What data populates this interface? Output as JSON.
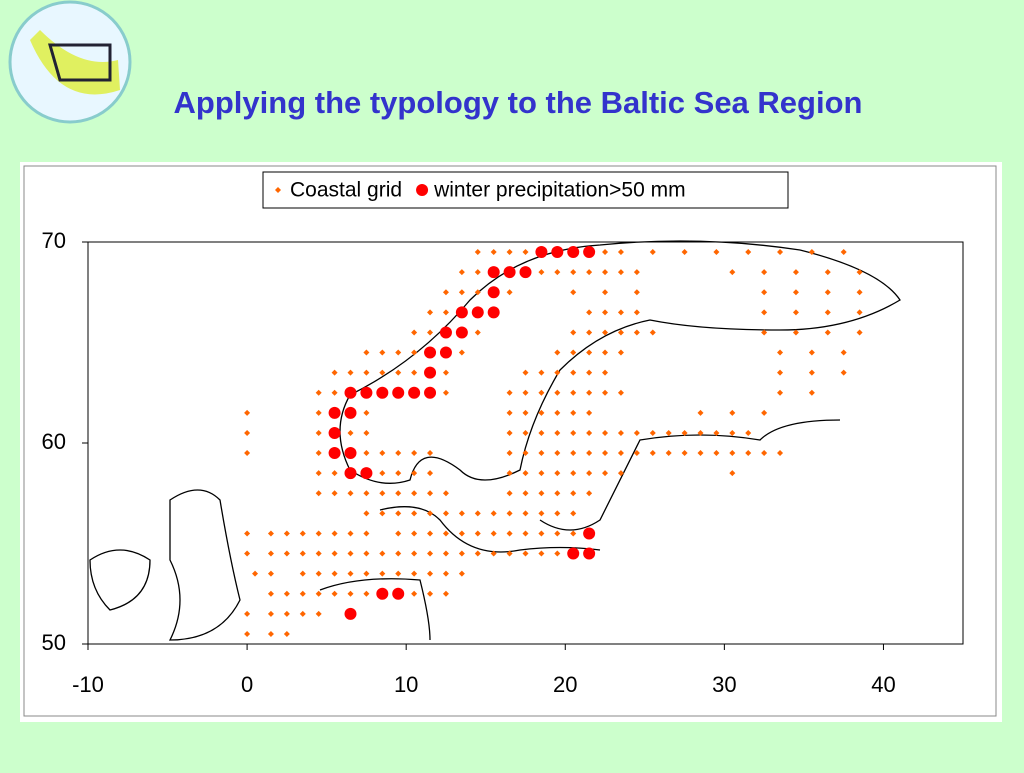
{
  "title": "Applying the typology to the Baltic Sea Region",
  "chart_data": {
    "type": "scatter",
    "xlim": [
      -10,
      45
    ],
    "xticks": [
      -10,
      0,
      10,
      20,
      30,
      40
    ],
    "ylim": [
      50,
      70
    ],
    "yticks": [
      50,
      60,
      70
    ],
    "series": [
      {
        "name": "Coastal grid",
        "color": "#ff6600",
        "marker": "diamond",
        "x": [
          14.5,
          15.5,
          16.5,
          17.5,
          22.5,
          23.5,
          25.5,
          27.5,
          29.5,
          31.5,
          33.5,
          35.5,
          37.5,
          13.5,
          14.5,
          18.5,
          19.5,
          20.5,
          21.5,
          22.5,
          23.5,
          24.5,
          30.5,
          32.5,
          34.5,
          36.5,
          38.5,
          12.5,
          13.5,
          14.5,
          16.5,
          20.5,
          22.5,
          24.5,
          32.5,
          34.5,
          36.5,
          38.5,
          11.5,
          12.5,
          21.5,
          22.5,
          23.5,
          24.5,
          32.5,
          34.5,
          36.5,
          38.5,
          10.5,
          11.5,
          14.5,
          20.5,
          21.5,
          22.5,
          23.5,
          24.5,
          25.5,
          32.5,
          34.5,
          36.5,
          38.5,
          7.5,
          8.5,
          9.5,
          10.5,
          13.5,
          19.5,
          20.5,
          21.5,
          22.5,
          23.5,
          33.5,
          35.5,
          37.5,
          5.5,
          6.5,
          7.5,
          8.5,
          9.5,
          10.5,
          12.5,
          17.5,
          18.5,
          19.5,
          20.5,
          21.5,
          22.5,
          33.5,
          35.5,
          37.5,
          4.5,
          5.5,
          12.5,
          16.5,
          17.5,
          18.5,
          19.5,
          20.5,
          21.5,
          22.5,
          23.5,
          33.5,
          35.5,
          0,
          4.5,
          7.5,
          16.5,
          17.5,
          18.5,
          19.5,
          20.5,
          21.5,
          28.5,
          30.5,
          32.5,
          0,
          4.5,
          6.5,
          7.5,
          16.5,
          17.5,
          18.5,
          19.5,
          20.5,
          21.5,
          22.5,
          23.5,
          24.5,
          25.5,
          26.5,
          27.5,
          28.5,
          29.5,
          30.5,
          31.5,
          0,
          4.5,
          7.5,
          8.5,
          9.5,
          10.5,
          11.5,
          16.5,
          17.5,
          18.5,
          19.5,
          20.5,
          21.5,
          22.5,
          23.5,
          24.5,
          25.5,
          26.5,
          27.5,
          28.5,
          29.5,
          30.5,
          31.5,
          32.5,
          33.5,
          4.5,
          5.5,
          8.5,
          9.5,
          10.5,
          11.5,
          16.5,
          17.5,
          18.5,
          19.5,
          20.5,
          21.5,
          22.5,
          23.5,
          30.5,
          4.5,
          5.5,
          6.5,
          7.5,
          8.5,
          9.5,
          10.5,
          11.5,
          12.5,
          16.5,
          17.5,
          18.5,
          19.5,
          20.5,
          21.5,
          7.5,
          8.5,
          9.5,
          10.5,
          11.5,
          12.5,
          13.5,
          14.5,
          15.5,
          16.5,
          17.5,
          18.5,
          19.5,
          20.5,
          0,
          1.5,
          2.5,
          3.5,
          4.5,
          5.5,
          6.5,
          7.5,
          9.5,
          10.5,
          11.5,
          12.5,
          13.5,
          14.5,
          15.5,
          16.5,
          17.5,
          18.5,
          19.5,
          20.5,
          0,
          1.5,
          2.5,
          3.5,
          4.5,
          5.5,
          6.5,
          7.5,
          8.5,
          9.5,
          10.5,
          11.5,
          12.5,
          13.5,
          14.5,
          15.5,
          16.5,
          17.5,
          18.5,
          19.5,
          0.5,
          1.5,
          3.5,
          4.5,
          5.5,
          6.5,
          7.5,
          8.5,
          9.5,
          10.5,
          11.5,
          12.5,
          13.5,
          1.5,
          2.5,
          3.5,
          4.5,
          5.5,
          6.5,
          7.5,
          10.5,
          11.5,
          12.5,
          0,
          1.5,
          2.5,
          3.5,
          4.5,
          0,
          1.5,
          2.5
        ],
        "values": [
          69.5,
          69.5,
          69.5,
          69.5,
          69.5,
          69.5,
          69.5,
          69.5,
          69.5,
          69.5,
          69.5,
          69.5,
          69.5,
          68.5,
          68.5,
          68.5,
          68.5,
          68.5,
          68.5,
          68.5,
          68.5,
          68.5,
          68.5,
          68.5,
          68.5,
          68.5,
          68.5,
          67.5,
          67.5,
          67.5,
          67.5,
          67.5,
          67.5,
          67.5,
          67.5,
          67.5,
          67.5,
          67.5,
          66.5,
          66.5,
          66.5,
          66.5,
          66.5,
          66.5,
          66.5,
          66.5,
          66.5,
          66.5,
          65.5,
          65.5,
          65.5,
          65.5,
          65.5,
          65.5,
          65.5,
          65.5,
          65.5,
          65.5,
          65.5,
          65.5,
          65.5,
          64.5,
          64.5,
          64.5,
          64.5,
          64.5,
          64.5,
          64.5,
          64.5,
          64.5,
          64.5,
          64.5,
          64.5,
          64.5,
          63.5,
          63.5,
          63.5,
          63.5,
          63.5,
          63.5,
          63.5,
          63.5,
          63.5,
          63.5,
          63.5,
          63.5,
          63.5,
          63.5,
          63.5,
          63.5,
          62.5,
          62.5,
          62.5,
          62.5,
          62.5,
          62.5,
          62.5,
          62.5,
          62.5,
          62.5,
          62.5,
          62.5,
          62.5,
          61.5,
          61.5,
          61.5,
          61.5,
          61.5,
          61.5,
          61.5,
          61.5,
          61.5,
          61.5,
          61.5,
          61.5,
          60.5,
          60.5,
          60.5,
          60.5,
          60.5,
          60.5,
          60.5,
          60.5,
          60.5,
          60.5,
          60.5,
          60.5,
          60.5,
          60.5,
          60.5,
          60.5,
          60.5,
          60.5,
          60.5,
          60.5,
          59.5,
          59.5,
          59.5,
          59.5,
          59.5,
          59.5,
          59.5,
          59.5,
          59.5,
          59.5,
          59.5,
          59.5,
          59.5,
          59.5,
          59.5,
          59.5,
          59.5,
          59.5,
          59.5,
          59.5,
          59.5,
          59.5,
          59.5,
          59.5,
          59.5,
          58.5,
          58.5,
          58.5,
          58.5,
          58.5,
          58.5,
          58.5,
          58.5,
          58.5,
          58.5,
          58.5,
          58.5,
          58.5,
          58.5,
          58.5,
          57.5,
          57.5,
          57.5,
          57.5,
          57.5,
          57.5,
          57.5,
          57.5,
          57.5,
          57.5,
          57.5,
          57.5,
          57.5,
          57.5,
          57.5,
          56.5,
          56.5,
          56.5,
          56.5,
          56.5,
          56.5,
          56.5,
          56.5,
          56.5,
          56.5,
          56.5,
          56.5,
          56.5,
          56.5,
          55.5,
          55.5,
          55.5,
          55.5,
          55.5,
          55.5,
          55.5,
          55.5,
          55.5,
          55.5,
          55.5,
          55.5,
          55.5,
          55.5,
          55.5,
          55.5,
          55.5,
          55.5,
          55.5,
          55.5,
          54.5,
          54.5,
          54.5,
          54.5,
          54.5,
          54.5,
          54.5,
          54.5,
          54.5,
          54.5,
          54.5,
          54.5,
          54.5,
          54.5,
          54.5,
          54.5,
          54.5,
          54.5,
          54.5,
          54.5,
          53.5,
          53.5,
          53.5,
          53.5,
          53.5,
          53.5,
          53.5,
          53.5,
          53.5,
          53.5,
          53.5,
          53.5,
          53.5,
          52.5,
          52.5,
          52.5,
          52.5,
          52.5,
          52.5,
          52.5,
          52.5,
          52.5,
          52.5,
          51.5,
          51.5,
          51.5,
          51.5,
          51.5,
          50.5,
          50.5,
          50.5
        ]
      },
      {
        "name": "winter precipitation>50 mm",
        "color": "#ff0000",
        "marker": "circle",
        "x": [
          18.5,
          19.5,
          20.5,
          21.5,
          15.5,
          16.5,
          17.5,
          15.5,
          13.5,
          14.5,
          15.5,
          12.5,
          13.5,
          11.5,
          12.5,
          11.5,
          6.5,
          7.5,
          8.5,
          9.5,
          10.5,
          11.5,
          5.5,
          6.5,
          5.5,
          5.5,
          6.5,
          6.5,
          7.5,
          21.5,
          20.5,
          21.5,
          8.5,
          9.5,
          6.5
        ],
        "values": [
          69.5,
          69.5,
          69.5,
          69.5,
          68.5,
          68.5,
          68.5,
          67.5,
          66.5,
          66.5,
          66.5,
          65.5,
          65.5,
          64.5,
          64.5,
          63.5,
          62.5,
          62.5,
          62.5,
          62.5,
          62.5,
          62.5,
          61.5,
          61.5,
          60.5,
          59.5,
          59.5,
          58.5,
          58.5,
          55.5,
          54.5,
          54.5,
          52.5,
          52.5,
          51.5
        ]
      }
    ]
  }
}
